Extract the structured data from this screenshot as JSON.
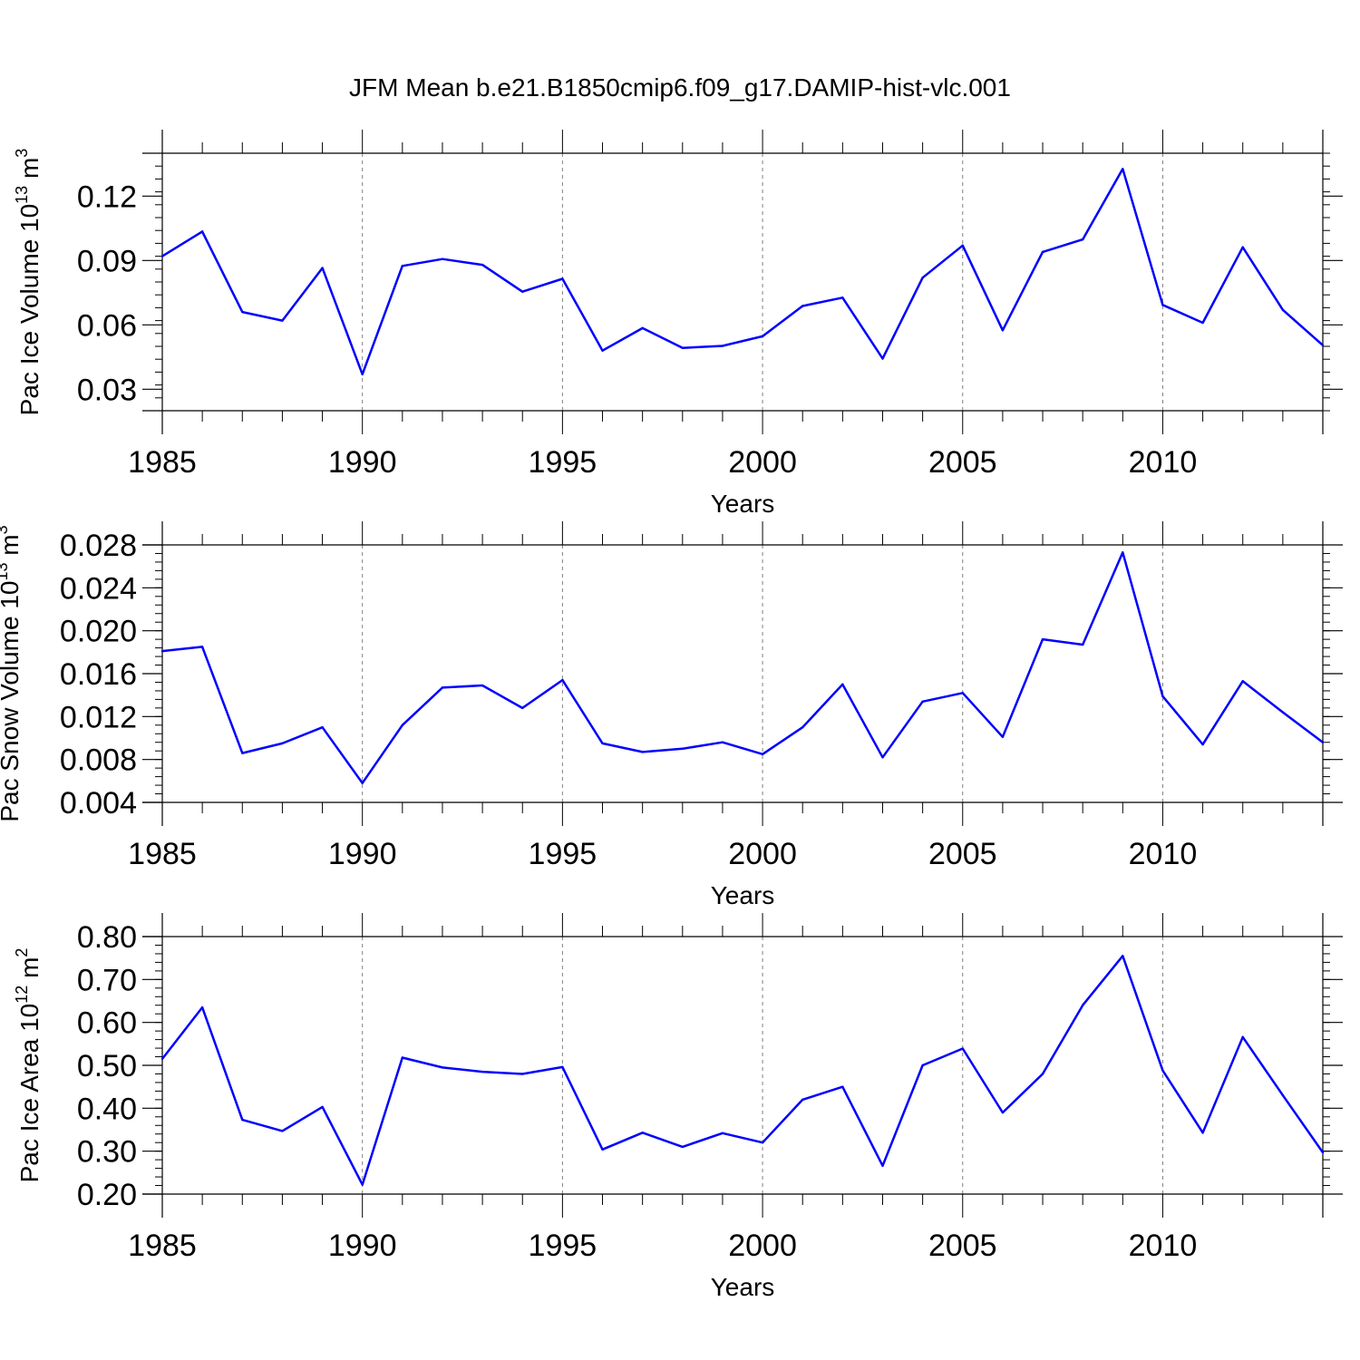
{
  "title": "JFM Mean b.e21.B1850cmip6.f09_g17.DAMIP-hist-vlc.001",
  "colors": {
    "line": "#0000ff",
    "axis": "#000000",
    "grid": "#808080"
  },
  "chart_data": [
    {
      "type": "line",
      "ylabel": {
        "text": "Pac Ice Volume 10",
        "sup": "13",
        "unit": " m",
        "unit_sup": "3"
      },
      "xlabel": "Years",
      "xlim": [
        1985,
        2014
      ],
      "ylim": [
        0.02,
        0.14
      ],
      "yticks": [
        0.03,
        0.06,
        0.09,
        0.12
      ],
      "ytick_labels": [
        "0.03",
        "0.06",
        "0.09",
        "0.12"
      ],
      "xticks": [
        1985,
        1990,
        1995,
        2000,
        2005,
        2010
      ],
      "xtick_labels": [
        "1985",
        "1990",
        "1995",
        "2000",
        "2005",
        "2010"
      ],
      "gridlines_x": [
        1990,
        1995,
        2000,
        2005,
        2010
      ],
      "x": [
        1985,
        1986,
        1987,
        1988,
        1989,
        1990,
        1991,
        1992,
        1993,
        1994,
        1995,
        1996,
        1997,
        1998,
        1999,
        2000,
        2001,
        2002,
        2003,
        2004,
        2005,
        2006,
        2007,
        2008,
        2009,
        2010,
        2011,
        2012,
        2013,
        2014
      ],
      "values": [
        0.092,
        0.1035,
        0.066,
        0.062,
        0.0865,
        0.037,
        0.0875,
        0.0907,
        0.088,
        0.0755,
        0.0815,
        0.048,
        0.0585,
        0.0493,
        0.0502,
        0.0547,
        0.0688,
        0.0727,
        0.0443,
        0.082,
        0.097,
        0.0575,
        0.094,
        0.0998,
        0.1327,
        0.0693,
        0.061,
        0.0962,
        0.067,
        0.0505
      ]
    },
    {
      "type": "line",
      "ylabel": {
        "text": "Pac Snow Volume 10",
        "sup": "13",
        "unit": " m",
        "unit_sup": "3"
      },
      "xlabel": "Years",
      "xlim": [
        1985,
        2014
      ],
      "ylim": [
        0.004,
        0.028
      ],
      "yticks": [
        0.004,
        0.008,
        0.012,
        0.016,
        0.02,
        0.024,
        0.028
      ],
      "ytick_labels": [
        "0.004",
        "0.008",
        "0.012",
        "0.016",
        "0.020",
        "0.024",
        "0.028"
      ],
      "xticks": [
        1985,
        1990,
        1995,
        2000,
        2005,
        2010
      ],
      "xtick_labels": [
        "1985",
        "1990",
        "1995",
        "2000",
        "2005",
        "2010"
      ],
      "gridlines_x": [
        1990,
        1995,
        2000,
        2005,
        2010
      ],
      "x": [
        1985,
        1986,
        1987,
        1988,
        1989,
        1990,
        1991,
        1992,
        1993,
        1994,
        1995,
        1996,
        1997,
        1998,
        1999,
        2000,
        2001,
        2002,
        2003,
        2004,
        2005,
        2006,
        2007,
        2008,
        2009,
        2010,
        2011,
        2012,
        2013,
        2014
      ],
      "values": [
        0.0181,
        0.0185,
        0.0086,
        0.0095,
        0.011,
        0.0058,
        0.0112,
        0.0147,
        0.0149,
        0.0128,
        0.0154,
        0.0095,
        0.0087,
        0.009,
        0.0096,
        0.0085,
        0.011,
        0.015,
        0.0082,
        0.0134,
        0.0142,
        0.0101,
        0.0192,
        0.0187,
        0.0273,
        0.0139,
        0.0094,
        0.0153,
        0.0124,
        0.0096
      ]
    },
    {
      "type": "line",
      "ylabel": {
        "text": "Pac Ice Area 10",
        "sup": "12",
        "unit": " m",
        "unit_sup": "2"
      },
      "xlabel": "Years",
      "xlim": [
        1985,
        2014
      ],
      "ylim": [
        0.2,
        0.8
      ],
      "yticks": [
        0.2,
        0.3,
        0.4,
        0.5,
        0.6,
        0.7,
        0.8
      ],
      "ytick_labels": [
        "0.20",
        "0.30",
        "0.40",
        "0.50",
        "0.60",
        "0.70",
        "0.80"
      ],
      "xticks": [
        1985,
        1990,
        1995,
        2000,
        2005,
        2010
      ],
      "xtick_labels": [
        "1985",
        "1990",
        "1995",
        "2000",
        "2005",
        "2010"
      ],
      "gridlines_x": [
        1990,
        1995,
        2000,
        2005,
        2010
      ],
      "x": [
        1985,
        1986,
        1987,
        1988,
        1989,
        1990,
        1991,
        1992,
        1993,
        1994,
        1995,
        1996,
        1997,
        1998,
        1999,
        2000,
        2001,
        2002,
        2003,
        2004,
        2005,
        2006,
        2007,
        2008,
        2009,
        2010,
        2011,
        2012,
        2013,
        2014
      ],
      "values": [
        0.515,
        0.635,
        0.373,
        0.347,
        0.403,
        0.222,
        0.518,
        0.495,
        0.485,
        0.48,
        0.496,
        0.304,
        0.343,
        0.31,
        0.342,
        0.32,
        0.42,
        0.45,
        0.266,
        0.5,
        0.539,
        0.39,
        0.48,
        0.64,
        0.755,
        0.488,
        0.343,
        0.566,
        0.43,
        0.297
      ]
    }
  ]
}
